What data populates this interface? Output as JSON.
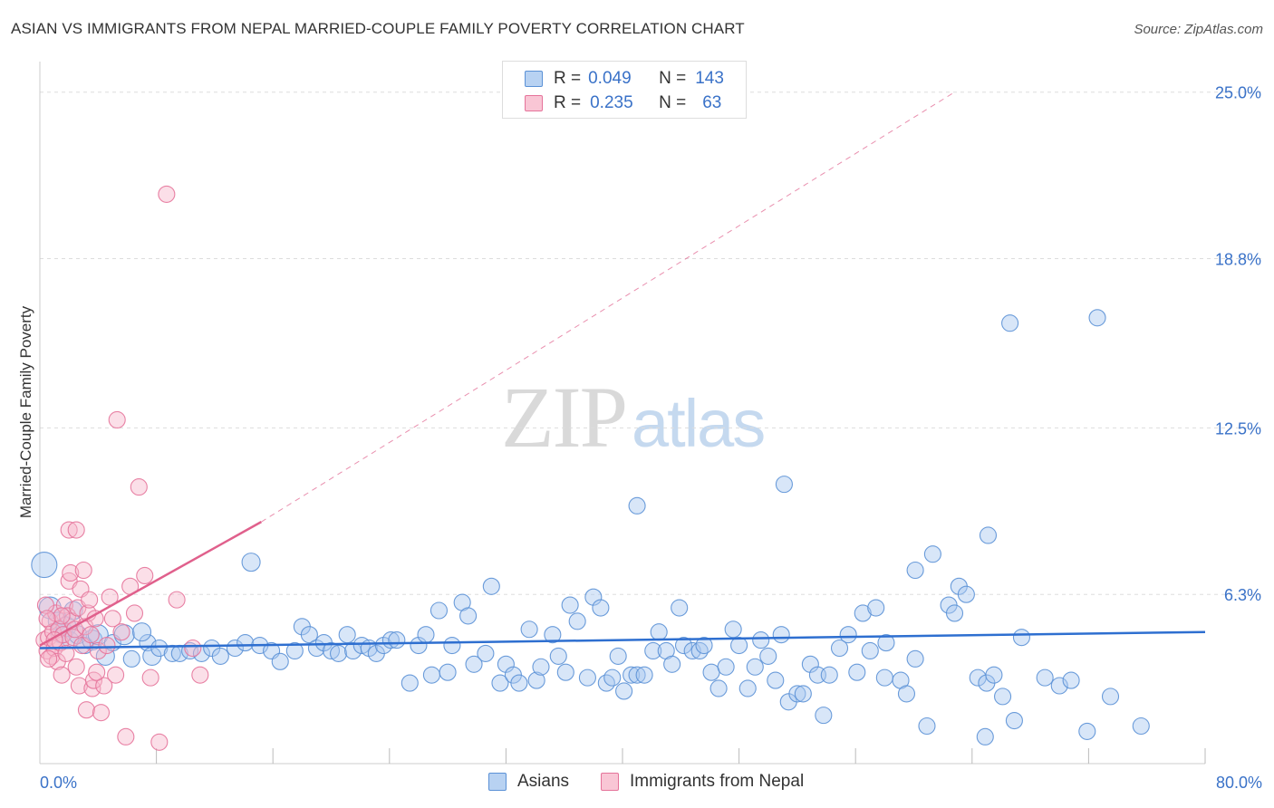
{
  "header": {
    "title": "ASIAN VS IMMIGRANTS FROM NEPAL MARRIED-COUPLE FAMILY POVERTY CORRELATION CHART",
    "source": "Source: ZipAtlas.com"
  },
  "watermark": {
    "zip": "ZIP",
    "atlas": "atlas"
  },
  "colors": {
    "asians_fill": "#a9c8ef",
    "asians_stroke": "#5b91d6",
    "asians_line": "#2e6fd0",
    "nepal_fill": "#f7b8cb",
    "nepal_stroke": "#e5739a",
    "nepal_line": "#e0608c",
    "grid": "#dddddd",
    "axis_text": "#3a72c8"
  },
  "legend_top": {
    "rows": [
      {
        "r_label": "R =",
        "r_value": "0.049",
        "n_label": "N =",
        "n_value": "143"
      },
      {
        "r_label": "R =",
        "r_value": "0.235",
        "n_label": "N =",
        "n_value": "63"
      }
    ]
  },
  "chart_data": {
    "type": "scatter",
    "title": "ASIAN VS IMMIGRANTS FROM NEPAL MARRIED-COUPLE FAMILY POVERTY CORRELATION CHART",
    "xlabel": "",
    "ylabel": "Married-Couple Family Poverty",
    "xlim": [
      0,
      80
    ],
    "ylim": [
      0,
      25.8
    ],
    "x_tick_labels": [
      "0.0%",
      "80.0%"
    ],
    "y_ticks": [
      6.3,
      12.5,
      18.8,
      25.0
    ],
    "y_tick_labels": [
      "6.3%",
      "12.5%",
      "18.8%",
      "25.0%"
    ],
    "grid": true,
    "legend_position": "bottom",
    "series": [
      {
        "name": "Asians",
        "trend": {
          "x": [
            0,
            80
          ],
          "y": [
            4.3,
            4.9
          ],
          "dashed_extension": false
        },
        "points": [
          [
            0.3,
            7.4,
            14
          ],
          [
            0.7,
            5.8,
            12
          ],
          [
            1.2,
            5.3,
            10
          ],
          [
            1.5,
            4.9,
            12
          ],
          [
            1.8,
            5.1,
            11
          ],
          [
            2.1,
            4.6,
            9
          ],
          [
            2.6,
            4.8,
            10
          ],
          [
            3.1,
            4.4,
            9
          ],
          [
            3.6,
            4.6,
            11
          ],
          [
            4.0,
            4.8,
            11
          ],
          [
            4.5,
            4.0,
            10
          ],
          [
            5.0,
            4.5,
            9
          ],
          [
            5.8,
            4.8,
            11
          ],
          [
            6.3,
            3.9,
            9
          ],
          [
            7.4,
            4.5,
            9
          ],
          [
            7.7,
            4.0,
            10
          ],
          [
            8.2,
            4.3,
            9
          ],
          [
            9.1,
            4.1,
            9
          ],
          [
            9.6,
            4.1,
            9
          ],
          [
            10.3,
            4.2,
            9
          ],
          [
            11.1,
            4.1,
            9
          ],
          [
            11.8,
            4.3,
            9
          ],
          [
            12.4,
            4.0,
            9
          ],
          [
            13.4,
            4.3,
            9
          ],
          [
            14.1,
            4.5,
            9
          ],
          [
            15.1,
            4.4,
            9
          ],
          [
            15.9,
            4.2,
            9
          ],
          [
            16.5,
            3.8,
            9
          ],
          [
            17.5,
            4.2,
            9
          ],
          [
            18.0,
            5.1,
            9
          ],
          [
            18.5,
            4.8,
            9
          ],
          [
            19.0,
            4.3,
            9
          ],
          [
            19.5,
            4.5,
            9
          ],
          [
            20.0,
            4.2,
            9
          ],
          [
            20.5,
            4.1,
            9
          ],
          [
            21.1,
            4.8,
            9
          ],
          [
            21.5,
            4.2,
            9
          ],
          [
            22.1,
            4.4,
            9
          ],
          [
            22.6,
            4.3,
            9
          ],
          [
            23.1,
            4.1,
            9
          ],
          [
            23.6,
            4.4,
            9
          ],
          [
            24.1,
            4.6,
            9
          ],
          [
            24.5,
            4.6,
            9
          ],
          [
            25.4,
            3.0,
            9
          ],
          [
            26.0,
            4.4,
            9
          ],
          [
            26.5,
            4.8,
            9
          ],
          [
            26.9,
            3.3,
            9
          ],
          [
            27.4,
            5.7,
            9
          ],
          [
            28.0,
            3.4,
            9
          ],
          [
            28.3,
            4.4,
            9
          ],
          [
            29.0,
            6.0,
            9
          ],
          [
            29.4,
            5.5,
            9
          ],
          [
            29.8,
            3.7,
            9
          ],
          [
            30.6,
            4.1,
            9
          ],
          [
            31.0,
            6.6,
            9
          ],
          [
            31.6,
            3.0,
            9
          ],
          [
            32.0,
            3.7,
            9
          ],
          [
            32.5,
            3.3,
            9
          ],
          [
            32.9,
            3.0,
            9
          ],
          [
            33.6,
            5.0,
            9
          ],
          [
            34.1,
            3.1,
            9
          ],
          [
            34.4,
            3.6,
            9
          ],
          [
            35.2,
            4.8,
            9
          ],
          [
            35.6,
            4.0,
            9
          ],
          [
            36.1,
            3.4,
            9
          ],
          [
            36.4,
            5.9,
            9
          ],
          [
            36.9,
            5.3,
            9
          ],
          [
            37.6,
            3.2,
            9
          ],
          [
            38.0,
            6.2,
            9
          ],
          [
            38.5,
            5.8,
            9
          ],
          [
            38.9,
            3.0,
            9
          ],
          [
            39.3,
            3.2,
            9
          ],
          [
            39.7,
            4.0,
            9
          ],
          [
            40.1,
            2.7,
            9
          ],
          [
            40.6,
            3.3,
            9
          ],
          [
            41.0,
            3.3,
            9
          ],
          [
            41.5,
            3.3,
            9
          ],
          [
            42.1,
            4.2,
            9
          ],
          [
            42.5,
            4.9,
            9
          ],
          [
            43.0,
            4.2,
            9
          ],
          [
            43.4,
            3.7,
            9
          ],
          [
            43.9,
            5.8,
            9
          ],
          [
            44.2,
            4.4,
            9
          ],
          [
            44.8,
            4.2,
            9
          ],
          [
            45.3,
            4.2,
            9
          ],
          [
            45.6,
            4.4,
            9
          ],
          [
            46.1,
            3.4,
            9
          ],
          [
            46.6,
            2.8,
            9
          ],
          [
            47.1,
            3.6,
            9
          ],
          [
            47.6,
            5.0,
            9
          ],
          [
            48.0,
            4.4,
            9
          ],
          [
            48.6,
            2.8,
            9
          ],
          [
            49.1,
            3.6,
            9
          ],
          [
            49.5,
            4.6,
            9
          ],
          [
            50.0,
            4.0,
            9
          ],
          [
            50.5,
            3.1,
            9
          ],
          [
            50.9,
            4.8,
            9
          ],
          [
            51.4,
            2.3,
            9
          ],
          [
            52.0,
            2.6,
            9
          ],
          [
            52.4,
            2.6,
            9
          ],
          [
            52.9,
            3.7,
            9
          ],
          [
            53.4,
            3.3,
            9
          ],
          [
            53.8,
            1.8,
            9
          ],
          [
            54.2,
            3.3,
            9
          ],
          [
            54.9,
            4.3,
            9
          ],
          [
            55.5,
            4.8,
            9
          ],
          [
            56.1,
            3.4,
            9
          ],
          [
            56.5,
            5.6,
            9
          ],
          [
            57.0,
            4.2,
            9
          ],
          [
            57.4,
            5.8,
            9
          ],
          [
            58.1,
            4.5,
            9
          ],
          [
            59.1,
            3.1,
            9
          ],
          [
            59.5,
            2.6,
            9
          ],
          [
            60.1,
            3.9,
            9
          ],
          [
            60.9,
            1.4,
            9
          ],
          [
            62.4,
            5.9,
            9
          ],
          [
            63.1,
            6.6,
            9
          ],
          [
            63.6,
            6.3,
            9
          ],
          [
            64.4,
            3.2,
            9
          ],
          [
            64.9,
            1.0,
            9
          ],
          [
            65.0,
            3.0,
            9
          ],
          [
            65.5,
            3.3,
            9
          ],
          [
            66.1,
            2.5,
            9
          ],
          [
            66.9,
            1.6,
            9
          ],
          [
            67.4,
            4.7,
            9
          ],
          [
            69.0,
            3.2,
            9
          ],
          [
            70.0,
            2.9,
            9
          ],
          [
            70.8,
            3.1,
            9
          ],
          [
            71.9,
            1.2,
            9
          ],
          [
            73.5,
            2.5,
            9
          ],
          [
            75.6,
            1.4,
            9
          ],
          [
            62.8,
            5.6,
            9
          ],
          [
            61.3,
            7.8,
            9
          ],
          [
            65.1,
            8.5,
            9
          ],
          [
            66.6,
            16.4,
            9
          ],
          [
            72.6,
            16.6,
            9
          ],
          [
            51.1,
            10.4,
            9
          ],
          [
            60.1,
            7.2,
            9
          ],
          [
            41.0,
            9.6,
            9
          ],
          [
            14.5,
            7.5,
            10
          ],
          [
            7.0,
            4.9,
            10
          ],
          [
            2.3,
            5.7,
            10
          ],
          [
            58.0,
            3.2,
            9
          ]
        ]
      },
      {
        "name": "Immigrants from Nepal",
        "trend": {
          "x": [
            0,
            15.2
          ],
          "y": [
            4.4,
            9.0
          ],
          "dashed_extension": true,
          "dashed_to": [
            62.8,
            25.0
          ]
        },
        "points": [
          [
            0.3,
            4.6,
            9
          ],
          [
            0.5,
            4.2,
            9
          ],
          [
            0.6,
            4.7,
            9
          ],
          [
            0.7,
            5.3,
            9
          ],
          [
            0.8,
            4.0,
            9
          ],
          [
            0.9,
            4.9,
            9
          ],
          [
            1.0,
            4.3,
            9
          ],
          [
            1.1,
            5.6,
            9
          ],
          [
            1.2,
            3.8,
            9
          ],
          [
            1.3,
            5.0,
            9
          ],
          [
            1.4,
            4.5,
            9
          ],
          [
            1.5,
            3.3,
            9
          ],
          [
            1.6,
            4.8,
            9
          ],
          [
            1.7,
            5.9,
            9
          ],
          [
            1.8,
            4.1,
            9
          ],
          [
            1.9,
            5.5,
            9
          ],
          [
            2.0,
            6.8,
            9
          ],
          [
            2.1,
            7.1,
            9
          ],
          [
            2.2,
            5.3,
            9
          ],
          [
            2.3,
            4.7,
            9
          ],
          [
            2.4,
            5.0,
            9
          ],
          [
            2.5,
            3.6,
            9
          ],
          [
            2.6,
            5.8,
            9
          ],
          [
            2.7,
            2.9,
            9
          ],
          [
            2.8,
            6.5,
            9
          ],
          [
            2.9,
            4.4,
            9
          ],
          [
            3.0,
            7.2,
            9
          ],
          [
            3.1,
            5.1,
            9
          ],
          [
            3.2,
            2.0,
            9
          ],
          [
            3.3,
            5.6,
            9
          ],
          [
            3.4,
            6.1,
            9
          ],
          [
            3.5,
            4.8,
            9
          ],
          [
            3.6,
            2.8,
            9
          ],
          [
            3.7,
            3.1,
            9
          ],
          [
            3.8,
            5.4,
            9
          ],
          [
            4.0,
            4.2,
            9
          ],
          [
            4.2,
            1.9,
            9
          ],
          [
            4.4,
            2.9,
            9
          ],
          [
            4.6,
            4.4,
            9
          ],
          [
            4.8,
            6.2,
            9
          ],
          [
            5.0,
            5.4,
            9
          ],
          [
            5.2,
            3.3,
            9
          ],
          [
            5.3,
            12.8,
            9
          ],
          [
            5.6,
            4.9,
            9
          ],
          [
            5.9,
            1.0,
            9
          ],
          [
            6.2,
            6.6,
            9
          ],
          [
            6.5,
            5.6,
            9
          ],
          [
            6.8,
            10.3,
            9
          ],
          [
            7.2,
            7.0,
            9
          ],
          [
            7.6,
            3.2,
            9
          ],
          [
            8.2,
            0.8,
            9
          ],
          [
            8.7,
            21.2,
            9
          ],
          [
            9.4,
            6.1,
            9
          ],
          [
            10.5,
            4.3,
            9
          ],
          [
            11.0,
            3.3,
            9
          ],
          [
            2.0,
            8.7,
            9
          ],
          [
            2.5,
            8.7,
            9
          ],
          [
            1.5,
            5.5,
            9
          ],
          [
            1.0,
            4.6,
            9
          ],
          [
            0.4,
            5.9,
            9
          ],
          [
            0.5,
            5.4,
            9
          ],
          [
            0.6,
            3.9,
            9
          ],
          [
            3.9,
            3.4,
            9
          ]
        ]
      }
    ]
  }
}
